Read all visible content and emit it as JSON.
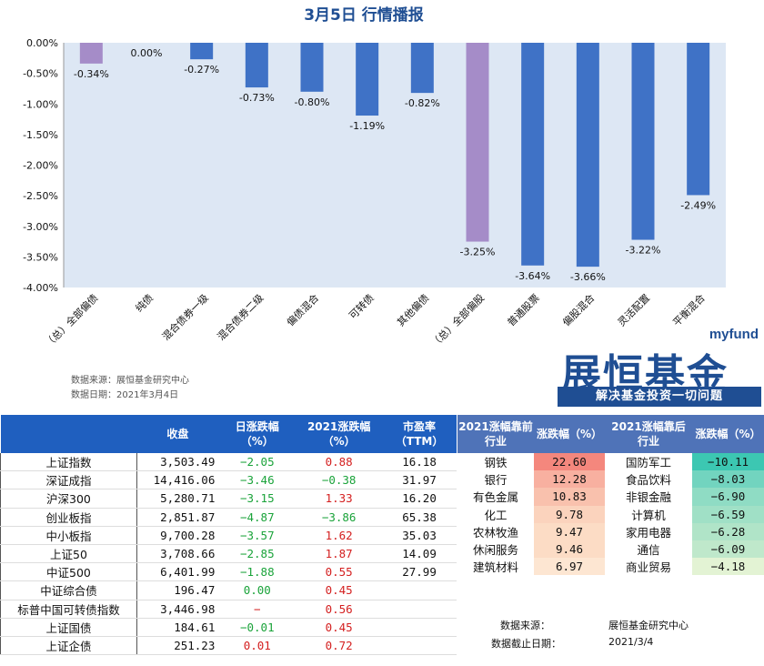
{
  "chart_data": {
    "type": "bar",
    "title": "3月5日 行情播报",
    "categories": [
      "（总）全部偏债",
      "纯债",
      "混合债券一级",
      "混合债券二级",
      "偏债混合",
      "可转债",
      "其他偏债",
      "（总）全部偏股",
      "普通股票",
      "偏股混合",
      "灵活配置",
      "平衡混合"
    ],
    "values": [
      -0.34,
      0.0,
      -0.27,
      -0.73,
      -0.8,
      -1.19,
      -0.82,
      -3.25,
      -3.64,
      -3.66,
      -3.22,
      -2.49
    ],
    "data_labels": [
      "-0.34%",
      "0.00%",
      "-0.27%",
      "-0.73%",
      "-0.80%",
      "-1.19%",
      "-0.82%",
      "-3.25%",
      "-3.64%",
      "-3.66%",
      "-3.22%",
      "-2.49%"
    ],
    "bar_colors": [
      "#a58cc8",
      "#3f72c6",
      "#3f72c6",
      "#3f72c6",
      "#3f72c6",
      "#3f72c6",
      "#3f72c6",
      "#a58cc8",
      "#3f72c6",
      "#3f72c6",
      "#3f72c6",
      "#3f72c6"
    ],
    "ylim": [
      -4.0,
      0.0
    ],
    "yticks": [
      "0.00%",
      "-0.50%",
      "-1.00%",
      "-1.50%",
      "-2.00%",
      "-2.50%",
      "-3.00%",
      "-3.50%",
      "-4.00%"
    ],
    "plot_background": "#dde7f4",
    "grid": false
  },
  "chart_source": {
    "line1": "数据来源：展恒基金研究中心",
    "line2": "数据日期：2021年3月4日"
  },
  "logo": {
    "myfund": "myfund",
    "brand": "展恒基金",
    "slogan": "解决基金投资一切问题"
  },
  "left_table": {
    "headers": [
      "",
      "收盘",
      "日涨跌幅\n（%）",
      "2021涨跌幅\n（%）",
      "市盈率\n（TTM）"
    ],
    "rows": [
      {
        "name": "上证指数",
        "close": "3,503.49",
        "day": "−2.05",
        "ytd": "0.88",
        "pe": "16.18"
      },
      {
        "name": "深证成指",
        "close": "14,416.06",
        "day": "−3.46",
        "ytd": "−0.38",
        "pe": "31.97"
      },
      {
        "name": "沪深300",
        "close": "5,280.71",
        "day": "−3.15",
        "ytd": "1.33",
        "pe": "16.20"
      },
      {
        "name": "创业板指",
        "close": "2,851.87",
        "day": "−4.87",
        "ytd": "−3.86",
        "pe": "65.38"
      },
      {
        "name": "中小板指",
        "close": "9,700.28",
        "day": "−3.57",
        "ytd": "1.62",
        "pe": "35.03"
      },
      {
        "name": "上证50",
        "close": "3,708.66",
        "day": "−2.85",
        "ytd": "1.87",
        "pe": "14.09"
      },
      {
        "name": "中证500",
        "close": "6,401.99",
        "day": "−1.88",
        "ytd": "0.55",
        "pe": "27.99"
      },
      {
        "name": "中证综合债",
        "close": "196.47",
        "day": "0.00",
        "ytd": "0.45",
        "pe": ""
      },
      {
        "name": "标普中国可转债指数",
        "close": "3,446.98",
        "day": "−",
        "ytd": "0.56",
        "pe": ""
      },
      {
        "name": "上证国债",
        "close": "184.61",
        "day": "−0.01",
        "ytd": "0.45",
        "pe": ""
      },
      {
        "name": "上证企债",
        "close": "251.23",
        "day": "0.01",
        "ytd": "0.72",
        "pe": ""
      }
    ]
  },
  "right_table": {
    "headers": [
      "2021涨幅靠前\n行业",
      "涨跌幅（%）",
      "2021涨幅靠后\n行业",
      "涨跌幅（%）"
    ],
    "rows": [
      {
        "top": "钢铁",
        "top_val": "22.60",
        "bot": "国防军工",
        "bot_val": "−10.11"
      },
      {
        "top": "银行",
        "top_val": "12.28",
        "bot": "食品饮料",
        "bot_val": "−8.03"
      },
      {
        "top": "有色金属",
        "top_val": "10.83",
        "bot": "非银金融",
        "bot_val": "−6.90"
      },
      {
        "top": "化工",
        "top_val": "9.78",
        "bot": "计算机",
        "bot_val": "−6.59"
      },
      {
        "top": "农林牧渔",
        "top_val": "9.47",
        "bot": "家用电器",
        "bot_val": "−6.28"
      },
      {
        "top": "休闲服务",
        "top_val": "9.46",
        "bot": "通信",
        "bot_val": "−6.09"
      },
      {
        "top": "建筑材料",
        "top_val": "6.97",
        "bot": "商业贸易",
        "bot_val": "−4.18"
      }
    ],
    "top_colors": [
      "#f4877d",
      "#f8b0a0",
      "#f9c1ad",
      "#fbd3bd",
      "#fcdcc5",
      "#fcdcc5",
      "#fde6d2"
    ],
    "bot_colors": [
      "#3cc7b2",
      "#72d4bf",
      "#8fdcc4",
      "#a0e0c6",
      "#b0e4c8",
      "#bfe8cb",
      "#e3f3d4"
    ],
    "source_label": "数据来源：",
    "source_value": "展恒基金研究中心",
    "date_label": "数据截止日期：",
    "date_value": "2021/3/4"
  }
}
